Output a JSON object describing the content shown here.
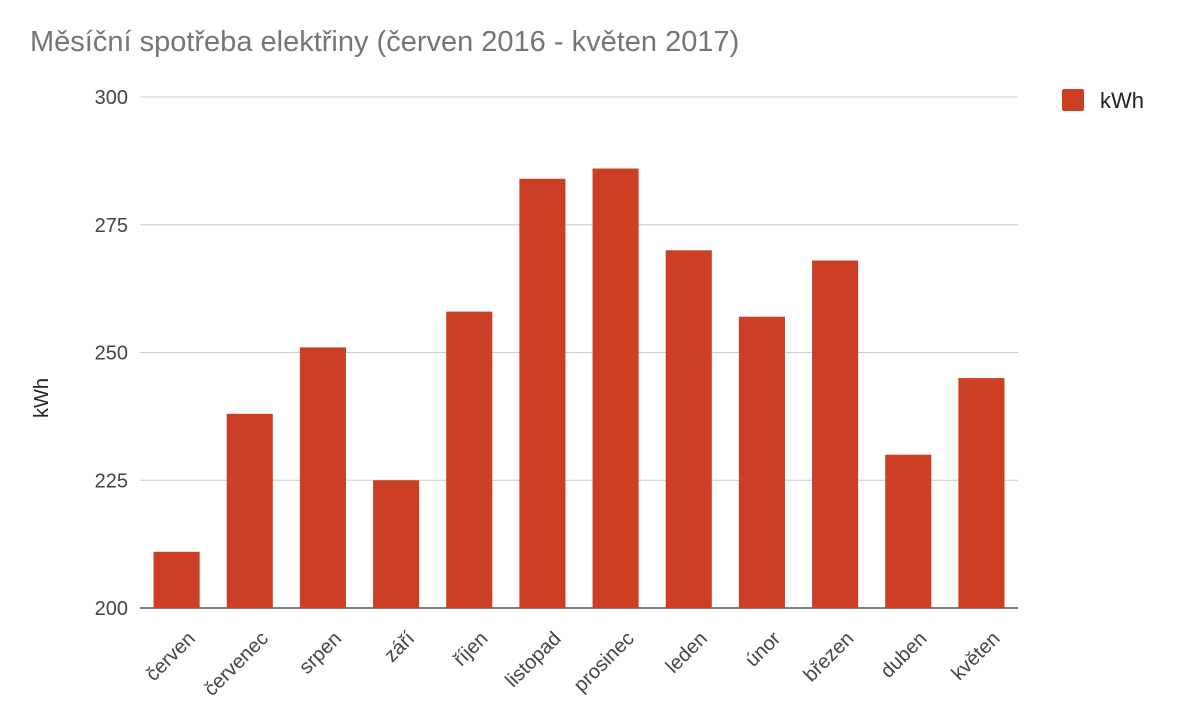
{
  "chart_data": {
    "type": "bar",
    "title": "Měsíční spotřeba elektřiny (červen 2016 - květen 2017)",
    "xlabel": "",
    "ylabel": "kWh",
    "ylim": [
      200,
      300
    ],
    "yticks": [
      200,
      225,
      250,
      275,
      300
    ],
    "grid": true,
    "legend_position": "right",
    "categories": [
      "červen",
      "červenec",
      "srpen",
      "září",
      "říjen",
      "listopad",
      "prosinec",
      "leden",
      "únor",
      "březen",
      "duben",
      "květen"
    ],
    "series": [
      {
        "name": "kWh",
        "color": "#cc3f25",
        "values": [
          211,
          238,
          251,
          225,
          258,
          284,
          286,
          270,
          257,
          268,
          230,
          245
        ]
      }
    ]
  }
}
